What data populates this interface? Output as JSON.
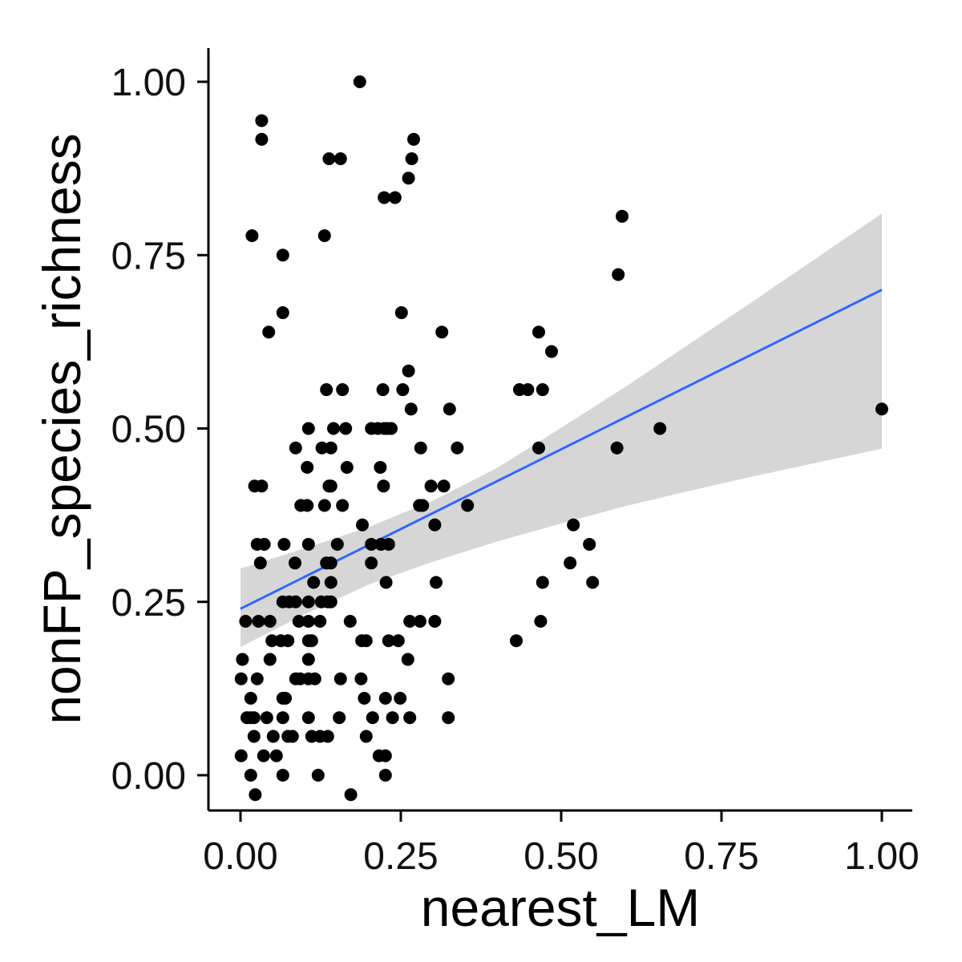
{
  "chart_data": {
    "type": "scatter",
    "xlabel": "nearest_LM",
    "ylabel": "nonFP_species_richness",
    "xlim": [
      -0.1,
      1.05
    ],
    "ylim": [
      -0.05,
      1.05
    ],
    "x_ticks": [
      0.0,
      0.25,
      0.5,
      0.75,
      1.0
    ],
    "x_tick_labels": [
      "0.00",
      "0.25",
      "0.50",
      "0.75",
      "1.00"
    ],
    "y_ticks": [
      0.0,
      0.25,
      0.5,
      0.75,
      1.0
    ],
    "y_tick_labels": [
      "0.00",
      "0.25",
      "0.50",
      "0.75",
      "1.00"
    ],
    "grid": false,
    "legend": "none",
    "point_color": "#000000",
    "points": [
      [
        0.186,
        1.0
      ],
      [
        0.033,
        0.944
      ],
      [
        0.033,
        0.917
      ],
      [
        0.138,
        0.889
      ],
      [
        0.156,
        0.889
      ],
      [
        0.27,
        0.917
      ],
      [
        0.267,
        0.889
      ],
      [
        0.262,
        0.861
      ],
      [
        0.224,
        0.833
      ],
      [
        0.241,
        0.833
      ],
      [
        0.595,
        0.806
      ],
      [
        0.018,
        0.778
      ],
      [
        0.131,
        0.778
      ],
      [
        0.066,
        0.75
      ],
      [
        0.589,
        0.722
      ],
      [
        0.066,
        0.667
      ],
      [
        0.251,
        0.667
      ],
      [
        0.044,
        0.639
      ],
      [
        0.314,
        0.639
      ],
      [
        0.465,
        0.639
      ],
      [
        0.485,
        0.611
      ],
      [
        0.262,
        0.583
      ],
      [
        0.134,
        0.556
      ],
      [
        0.159,
        0.556
      ],
      [
        0.222,
        0.556
      ],
      [
        0.253,
        0.556
      ],
      [
        0.435,
        0.556
      ],
      [
        0.448,
        0.556
      ],
      [
        0.471,
        0.556
      ],
      [
        0.266,
        0.528
      ],
      [
        0.326,
        0.528
      ],
      [
        0.106,
        0.5
      ],
      [
        0.145,
        0.5
      ],
      [
        0.164,
        0.5
      ],
      [
        0.204,
        0.5
      ],
      [
        0.214,
        0.5
      ],
      [
        0.224,
        0.5
      ],
      [
        0.229,
        0.5
      ],
      [
        0.235,
        0.5
      ],
      [
        0.654,
        0.5
      ],
      [
        0.086,
        0.472
      ],
      [
        0.127,
        0.472
      ],
      [
        0.141,
        0.472
      ],
      [
        0.281,
        0.472
      ],
      [
        0.338,
        0.472
      ],
      [
        0.465,
        0.472
      ],
      [
        0.587,
        0.472
      ],
      [
        0.104,
        0.444
      ],
      [
        0.166,
        0.444
      ],
      [
        0.218,
        0.444
      ],
      [
        0.022,
        0.417
      ],
      [
        0.033,
        0.417
      ],
      [
        0.138,
        0.417
      ],
      [
        0.141,
        0.417
      ],
      [
        0.223,
        0.417
      ],
      [
        0.297,
        0.417
      ],
      [
        0.317,
        0.417
      ],
      [
        0.094,
        0.389
      ],
      [
        0.104,
        0.389
      ],
      [
        0.131,
        0.389
      ],
      [
        0.159,
        0.389
      ],
      [
        0.279,
        0.389
      ],
      [
        0.284,
        0.389
      ],
      [
        0.354,
        0.389
      ],
      [
        0.19,
        0.361
      ],
      [
        0.303,
        0.361
      ],
      [
        0.519,
        0.361
      ],
      [
        0.026,
        0.333
      ],
      [
        0.037,
        0.333
      ],
      [
        0.068,
        0.333
      ],
      [
        0.106,
        0.333
      ],
      [
        0.151,
        0.333
      ],
      [
        0.204,
        0.333
      ],
      [
        0.219,
        0.333
      ],
      [
        0.231,
        0.333
      ],
      [
        0.544,
        0.333
      ],
      [
        0.031,
        0.306
      ],
      [
        0.085,
        0.306
      ],
      [
        0.134,
        0.306
      ],
      [
        0.141,
        0.306
      ],
      [
        0.204,
        0.306
      ],
      [
        0.514,
        0.306
      ],
      [
        0.114,
        0.278
      ],
      [
        0.141,
        0.278
      ],
      [
        0.227,
        0.278
      ],
      [
        0.305,
        0.278
      ],
      [
        0.471,
        0.278
      ],
      [
        0.549,
        0.278
      ],
      [
        0.066,
        0.25
      ],
      [
        0.076,
        0.25
      ],
      [
        0.086,
        0.25
      ],
      [
        0.106,
        0.25
      ],
      [
        0.126,
        0.25
      ],
      [
        0.136,
        0.25
      ],
      [
        0.141,
        0.25
      ],
      [
        0.008,
        0.222
      ],
      [
        0.028,
        0.222
      ],
      [
        0.046,
        0.222
      ],
      [
        0.091,
        0.222
      ],
      [
        0.106,
        0.222
      ],
      [
        0.124,
        0.222
      ],
      [
        0.171,
        0.222
      ],
      [
        0.264,
        0.222
      ],
      [
        0.28,
        0.222
      ],
      [
        0.303,
        0.222
      ],
      [
        0.468,
        0.222
      ],
      [
        0.049,
        0.194
      ],
      [
        0.063,
        0.194
      ],
      [
        0.074,
        0.194
      ],
      [
        0.106,
        0.194
      ],
      [
        0.111,
        0.194
      ],
      [
        0.189,
        0.194
      ],
      [
        0.196,
        0.194
      ],
      [
        0.231,
        0.194
      ],
      [
        0.246,
        0.194
      ],
      [
        0.43,
        0.194
      ],
      [
        0.003,
        0.167
      ],
      [
        0.046,
        0.167
      ],
      [
        0.106,
        0.167
      ],
      [
        0.261,
        0.167
      ],
      [
        0.001,
        0.139
      ],
      [
        0.026,
        0.139
      ],
      [
        0.086,
        0.139
      ],
      [
        0.093,
        0.139
      ],
      [
        0.106,
        0.139
      ],
      [
        0.116,
        0.139
      ],
      [
        0.156,
        0.139
      ],
      [
        0.188,
        0.139
      ],
      [
        0.324,
        0.139
      ],
      [
        0.016,
        0.111
      ],
      [
        0.066,
        0.111
      ],
      [
        0.07,
        0.111
      ],
      [
        0.193,
        0.111
      ],
      [
        0.226,
        0.111
      ],
      [
        0.249,
        0.111
      ],
      [
        0.01,
        0.083
      ],
      [
        0.016,
        0.083
      ],
      [
        0.021,
        0.083
      ],
      [
        0.041,
        0.083
      ],
      [
        0.066,
        0.083
      ],
      [
        0.106,
        0.083
      ],
      [
        0.154,
        0.083
      ],
      [
        0.206,
        0.083
      ],
      [
        0.237,
        0.083
      ],
      [
        0.264,
        0.083
      ],
      [
        0.324,
        0.083
      ],
      [
        0.021,
        0.056
      ],
      [
        0.051,
        0.056
      ],
      [
        0.074,
        0.056
      ],
      [
        0.081,
        0.056
      ],
      [
        0.111,
        0.056
      ],
      [
        0.124,
        0.056
      ],
      [
        0.136,
        0.056
      ],
      [
        0.196,
        0.056
      ],
      [
        0.001,
        0.028
      ],
      [
        0.036,
        0.028
      ],
      [
        0.056,
        0.028
      ],
      [
        0.216,
        0.028
      ],
      [
        0.226,
        0.028
      ],
      [
        0.016,
        0.0
      ],
      [
        0.066,
        0.0
      ],
      [
        0.121,
        0.0
      ],
      [
        0.226,
        0.0
      ],
      [
        0.023,
        -0.028
      ],
      [
        0.172,
        -0.028
      ],
      [
        1.0,
        0.528
      ]
    ],
    "fit_line": {
      "color": "#3366FF",
      "x": [
        0.0,
        1.0
      ],
      "y": [
        0.24,
        0.7
      ]
    },
    "confidence_band": {
      "color": "#d6d6d6",
      "x": [
        0.0,
        0.1,
        0.2,
        0.3,
        0.4,
        0.5,
        0.6,
        0.7,
        0.8,
        0.9,
        1.0
      ],
      "upper": [
        0.298,
        0.327,
        0.358,
        0.396,
        0.443,
        0.501,
        0.56,
        0.622,
        0.684,
        0.747,
        0.81
      ],
      "lower": [
        0.185,
        0.232,
        0.275,
        0.308,
        0.337,
        0.363,
        0.388,
        0.41,
        0.431,
        0.451,
        0.471
      ]
    }
  }
}
